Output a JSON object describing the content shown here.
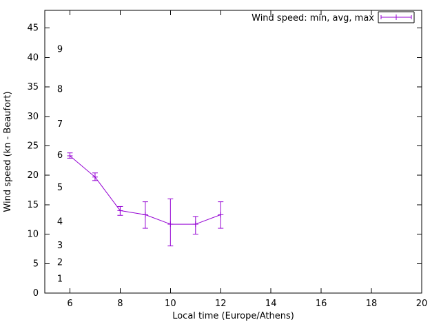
{
  "chart_data": {
    "type": "line",
    "title": "",
    "legend": "Wind speed: min, avg, max",
    "xlabel": "Local time (Europe/Athens)",
    "ylabel": "Wind speed (kn - Beaufort)",
    "x": [
      6,
      7,
      8,
      9,
      10,
      11,
      12
    ],
    "series": [
      {
        "name": "avg",
        "values": [
          23.3,
          19.7,
          14.0,
          13.3,
          11.7,
          11.7,
          13.3
        ]
      },
      {
        "name": "min",
        "values": [
          22.9,
          19.1,
          13.2,
          11.0,
          8.0,
          10.0,
          11.0
        ]
      },
      {
        "name": "max",
        "values": [
          23.8,
          20.4,
          14.7,
          15.5,
          16.0,
          13.0,
          15.5
        ]
      }
    ],
    "xlim": [
      5,
      20
    ],
    "ylim": [
      0,
      48
    ],
    "xticks": [
      6,
      8,
      10,
      12,
      14,
      16,
      18,
      20
    ],
    "yticks": [
      0,
      5,
      10,
      15,
      20,
      25,
      30,
      35,
      40,
      45
    ],
    "beaufort_labels": [
      {
        "label": "1",
        "kn": 2.4
      },
      {
        "label": "2",
        "kn": 5.2
      },
      {
        "label": "3",
        "kn": 8.1
      },
      {
        "label": "4",
        "kn": 12.1
      },
      {
        "label": "5",
        "kn": 17.9
      },
      {
        "label": "6",
        "kn": 23.4
      },
      {
        "label": "7",
        "kn": 28.7
      },
      {
        "label": "8",
        "kn": 34.6
      },
      {
        "label": "9",
        "kn": 41.4
      }
    ],
    "line_color": "#9400d3",
    "axis_color": "#000000",
    "grid": false,
    "legend_position": "top-right",
    "point_style": "plus-with-errorbars"
  }
}
